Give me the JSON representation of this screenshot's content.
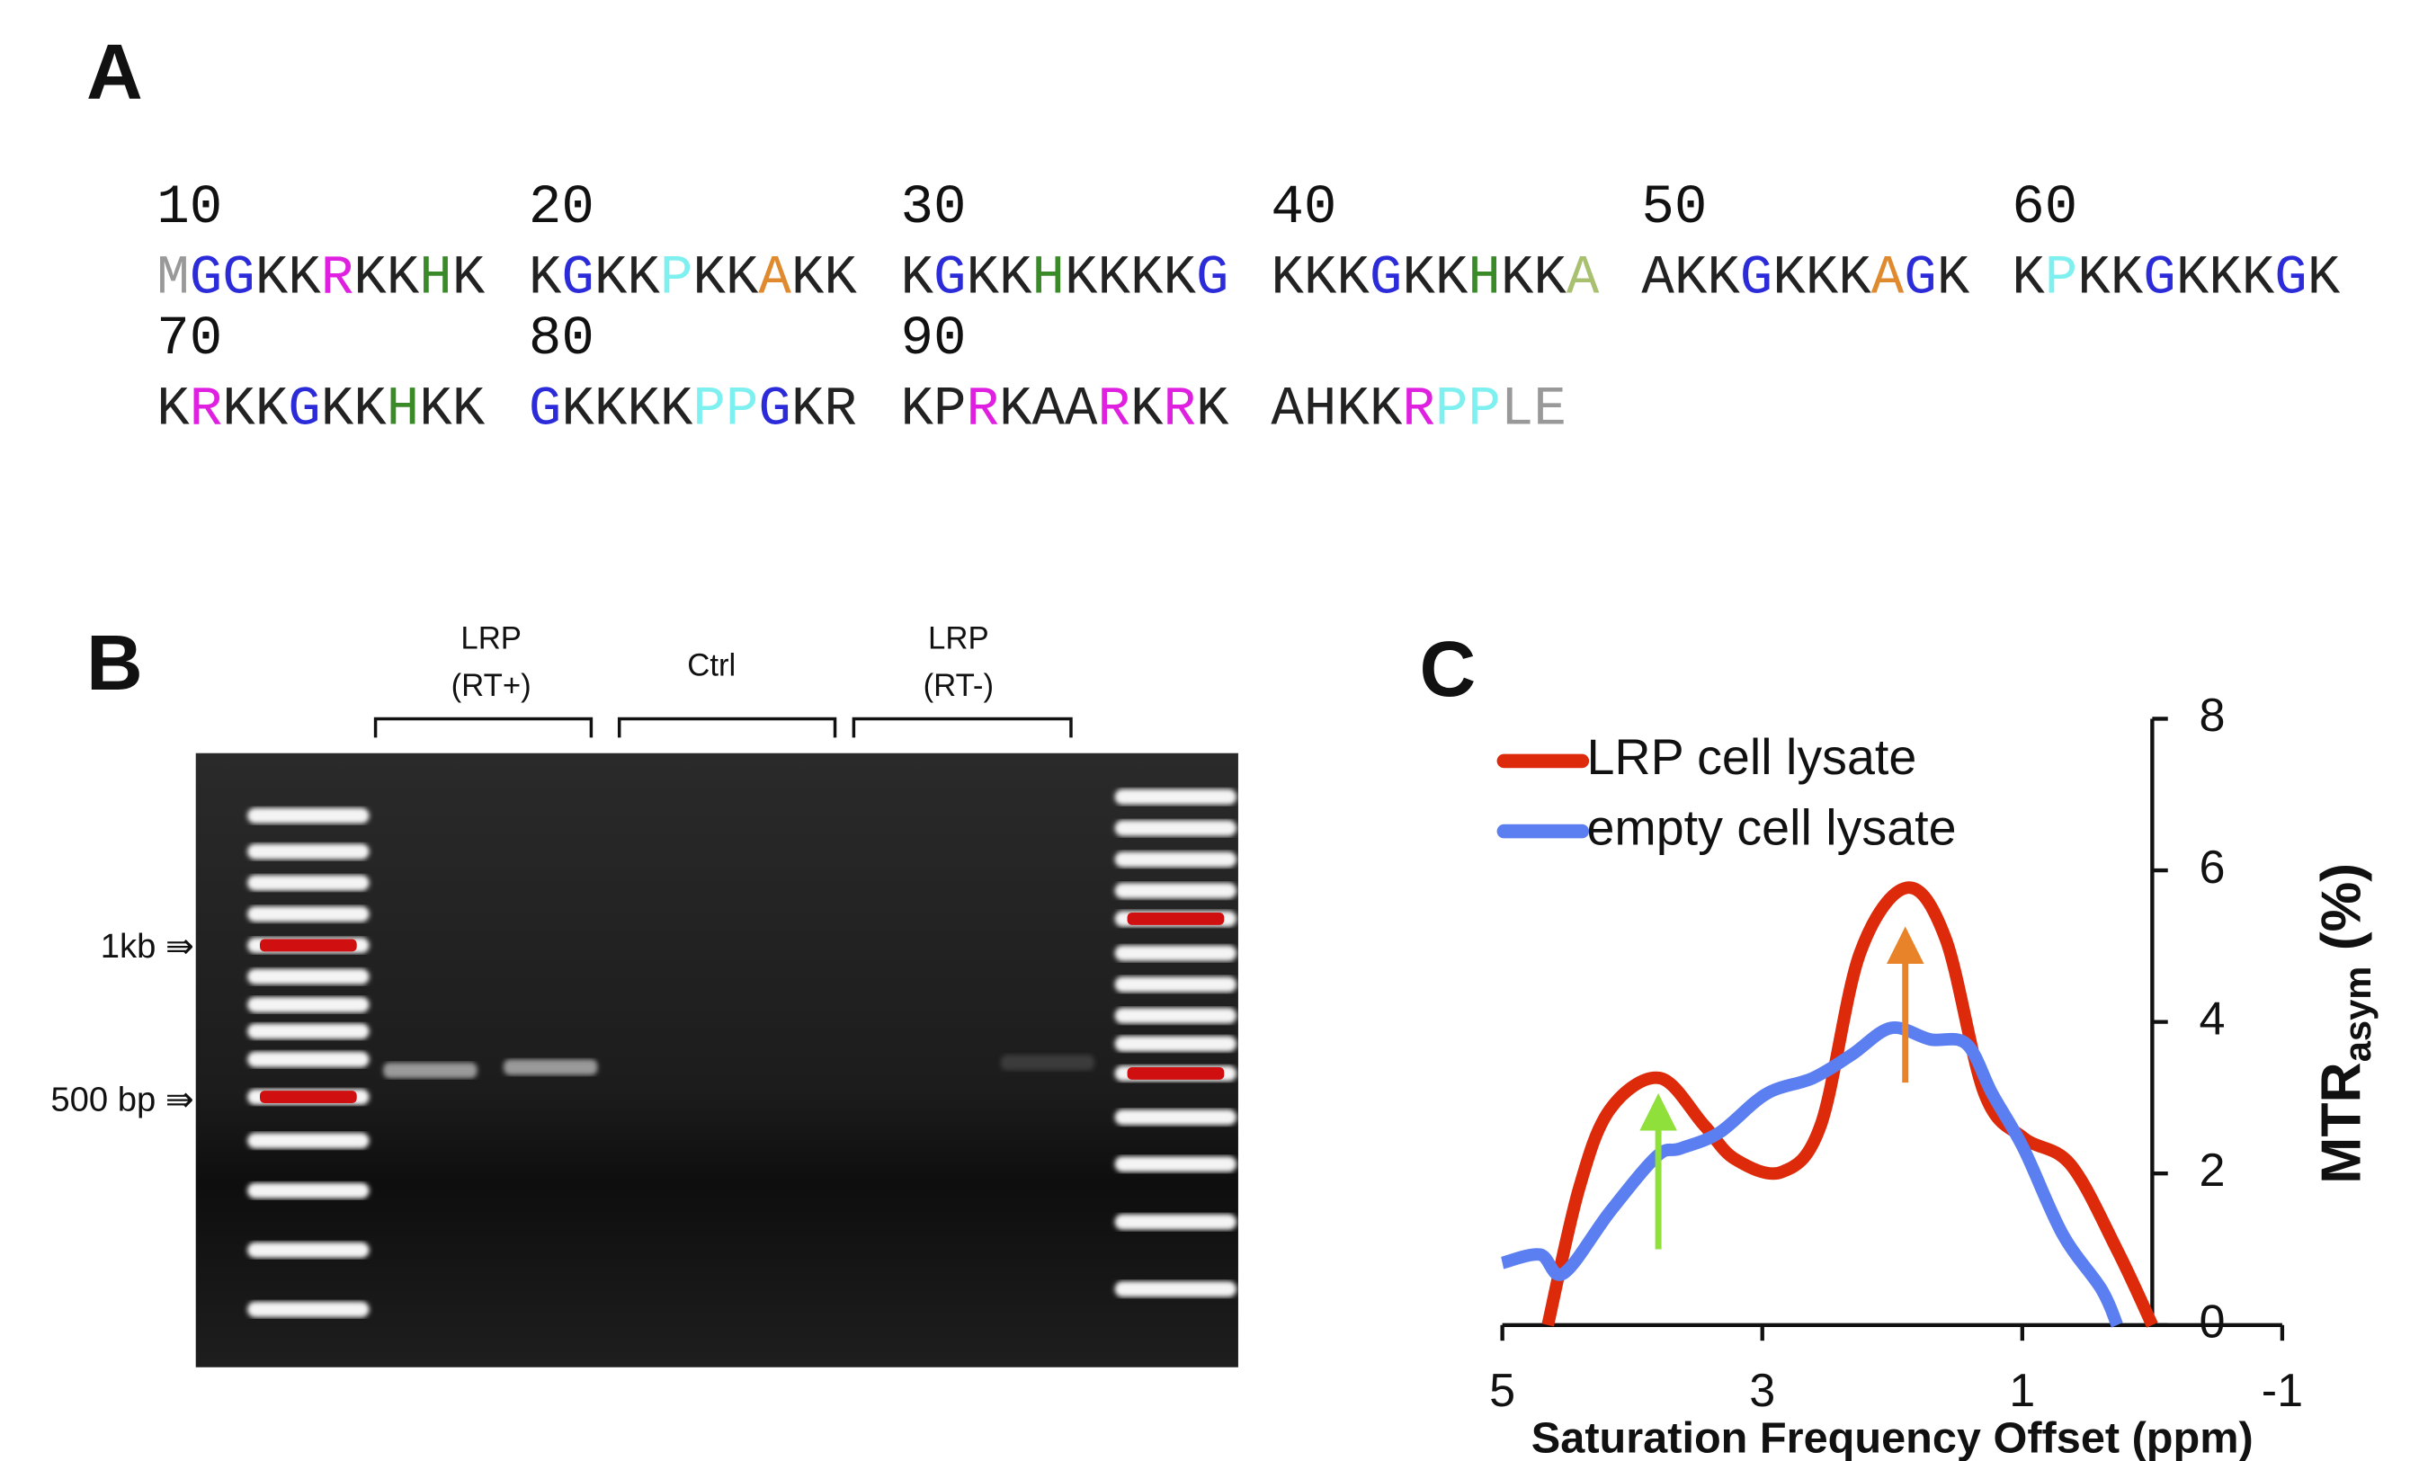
{
  "panel_a": {
    "label": "A",
    "rows": [
      {
        "numbers": [
          "10",
          "20",
          "30",
          "40",
          "50",
          "60"
        ],
        "blocks": [
          [
            {
              "text": "M",
              "color": "#999999"
            },
            {
              "text": "GG",
              "color": "#2b2bd9"
            },
            {
              "text": "KK",
              "color": "#222222"
            },
            {
              "text": "R",
              "color": "#e020e0"
            },
            {
              "text": "KK",
              "color": "#222222"
            },
            {
              "text": "H",
              "color": "#3a8a2a"
            },
            {
              "text": "K",
              "color": "#222222"
            }
          ],
          [
            {
              "text": "K",
              "color": "#222222"
            },
            {
              "text": "G",
              "color": "#2b2bd9"
            },
            {
              "text": "KK",
              "color": "#222222"
            },
            {
              "text": "P",
              "color": "#7ff0f0"
            },
            {
              "text": "KK",
              "color": "#222222"
            },
            {
              "text": "A",
              "color": "#e08a30"
            },
            {
              "text": "KK",
              "color": "#222222"
            }
          ],
          [
            {
              "text": "K",
              "color": "#222222"
            },
            {
              "text": "G",
              "color": "#2b2bd9"
            },
            {
              "text": "KK",
              "color": "#222222"
            },
            {
              "text": "H",
              "color": "#3a8a2a"
            },
            {
              "text": "KKKK",
              "color": "#222222"
            },
            {
              "text": "G",
              "color": "#2b2bd9"
            }
          ],
          [
            {
              "text": "KKK",
              "color": "#222222"
            },
            {
              "text": "G",
              "color": "#2b2bd9"
            },
            {
              "text": "KK",
              "color": "#222222"
            },
            {
              "text": "H",
              "color": "#3a8a2a"
            },
            {
              "text": "KK",
              "color": "#222222"
            },
            {
              "text": "A",
              "color": "#a8c070"
            }
          ],
          [
            {
              "text": "AKK",
              "color": "#222222"
            },
            {
              "text": "G",
              "color": "#2b2bd9"
            },
            {
              "text": "KKK",
              "color": "#222222"
            },
            {
              "text": "A",
              "color": "#e08a30"
            },
            {
              "text": "G",
              "color": "#2b2bd9"
            },
            {
              "text": "K",
              "color": "#222222"
            }
          ],
          [
            {
              "text": "K",
              "color": "#222222"
            },
            {
              "text": "P",
              "color": "#7ff0f0"
            },
            {
              "text": "KK",
              "color": "#222222"
            },
            {
              "text": "G",
              "color": "#2b2bd9"
            },
            {
              "text": "KKK",
              "color": "#222222"
            },
            {
              "text": "G",
              "color": "#2b2bd9"
            },
            {
              "text": "K",
              "color": "#222222"
            }
          ]
        ]
      },
      {
        "numbers": [
          "70",
          "80",
          "90"
        ],
        "blocks": [
          [
            {
              "text": "K",
              "color": "#222222"
            },
            {
              "text": "R",
              "color": "#e020e0"
            },
            {
              "text": "KK",
              "color": "#222222"
            },
            {
              "text": "G",
              "color": "#2b2bd9"
            },
            {
              "text": "KK",
              "color": "#222222"
            },
            {
              "text": "H",
              "color": "#3a8a2a"
            },
            {
              "text": "KK",
              "color": "#222222"
            }
          ],
          [
            {
              "text": "G",
              "color": "#2b2bd9"
            },
            {
              "text": "KKKK",
              "color": "#222222"
            },
            {
              "text": "PP",
              "color": "#7ff0f0"
            },
            {
              "text": "G",
              "color": "#2b2bd9"
            },
            {
              "text": "KR",
              "color": "#222222"
            }
          ],
          [
            {
              "text": "KP",
              "color": "#222222"
            },
            {
              "text": "R",
              "color": "#e020e0"
            },
            {
              "text": "KAA",
              "color": "#222222"
            },
            {
              "text": "R",
              "color": "#e020e0"
            },
            {
              "text": "K",
              "color": "#222222"
            },
            {
              "text": "R",
              "color": "#e020e0"
            },
            {
              "text": "K",
              "color": "#222222"
            }
          ],
          [
            {
              "text": "AHKK",
              "color": "#222222"
            },
            {
              "text": "R",
              "color": "#e020e0"
            },
            {
              "text": "PP",
              "color": "#7ff0f0"
            },
            {
              "text": "LE",
              "color": "#999999"
            }
          ]
        ]
      }
    ]
  },
  "panel_b": {
    "label": "B",
    "lanes": [
      {
        "lines": [
          "LRP",
          "(RT+)"
        ]
      },
      {
        "lines": [
          "Ctrl"
        ]
      },
      {
        "lines": [
          "LRP",
          "(RT-)"
        ]
      }
    ],
    "markers": [
      "1kb ⇛",
      "500 bp ⇛"
    ]
  },
  "chart_data": {
    "type": "line",
    "panel_label": "C",
    "xlabel": "Saturation Frequency Offset (ppm)",
    "ylabel": [
      "MTR",
      "asym",
      " (%)"
    ],
    "xlim": [
      5,
      -1
    ],
    "xticks": [
      5,
      3,
      1,
      -1
    ],
    "ylim": [
      0,
      8
    ],
    "yticks": [
      0,
      2,
      4,
      6,
      8
    ],
    "y_axis_at": 0,
    "series": [
      {
        "name": "LRP cell lysate",
        "color": "#dd2a0a",
        "x": [
          4.65,
          4.41,
          4.17,
          3.79,
          3.45,
          3.21,
          2.85,
          2.55,
          2.25,
          1.89,
          1.59,
          1.29,
          0.99,
          0.63,
          0.27,
          0
        ],
        "values": [
          0,
          1.8,
          2.85,
          3.26,
          2.64,
          2.19,
          2.02,
          2.64,
          4.9,
          5.77,
          5.1,
          3.05,
          2.47,
          2.12,
          0.99,
          0
        ]
      },
      {
        "name": "empty cell lysate",
        "color": "#5b7ff0",
        "x": [
          5,
          4.71,
          4.53,
          4.17,
          3.81,
          3.63,
          3.33,
          2.97,
          2.61,
          2.31,
          2.01,
          1.71,
          1.43,
          1.23,
          0.99,
          0.69,
          0.39,
          0.27
        ],
        "values": [
          0.82,
          0.93,
          0.68,
          1.5,
          2.23,
          2.33,
          2.54,
          3.05,
          3.26,
          3.57,
          3.92,
          3.77,
          3.71,
          3.05,
          2.33,
          1.2,
          0.47,
          0
        ]
      }
    ],
    "arrows": [
      {
        "x": 3.8,
        "from": 1.0,
        "to": 3.1,
        "color": "#8fe03a"
      },
      {
        "x": 1.9,
        "from": 3.2,
        "to": 5.3,
        "color": "#e8832a"
      }
    ]
  }
}
